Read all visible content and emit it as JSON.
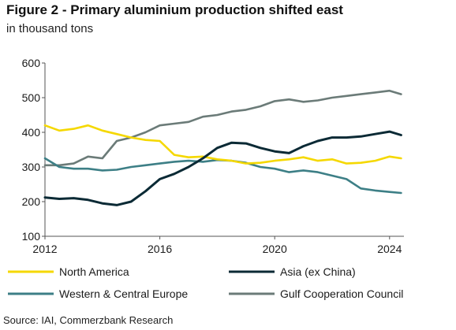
{
  "header": {
    "title": "Figure 2 - Primary aluminium production shifted east",
    "subtitle": "in thousand tons"
  },
  "footer": {
    "source": "Source: IAI, Commerzbank Research"
  },
  "colors": {
    "north_america": "#f5d800",
    "asia_ex_china": "#0b2a35",
    "western_central_europe": "#3d7f86",
    "gulf_cooperation_council": "#6b7b78",
    "axis": "#555555"
  },
  "chart_data": {
    "type": "line",
    "title": "Figure 2 - Primary aluminium production shifted east",
    "subtitle": "in thousand tons",
    "xlabel": "",
    "ylabel": "",
    "xlim": [
      2012,
      2024.5
    ],
    "ylim": [
      100,
      600
    ],
    "yticks": [
      "100",
      "200",
      "300",
      "400",
      "500",
      "600"
    ],
    "xticks": [
      "2012",
      "2016",
      "2020",
      "2024"
    ],
    "grid": false,
    "legend_position": "bottom",
    "x": [
      2012.0,
      2012.5,
      2013.0,
      2013.5,
      2014.0,
      2014.5,
      2015.0,
      2015.5,
      2016.0,
      2016.5,
      2017.0,
      2017.5,
      2018.0,
      2018.5,
      2019.0,
      2019.5,
      2020.0,
      2020.5,
      2021.0,
      2021.5,
      2022.0,
      2022.5,
      2023.0,
      2023.5,
      2024.0,
      2024.4
    ],
    "series": [
      {
        "name": "North America",
        "color_key": "north_america",
        "values": [
          420,
          405,
          410,
          420,
          405,
          395,
          385,
          378,
          375,
          335,
          328,
          330,
          322,
          318,
          310,
          312,
          318,
          322,
          328,
          318,
          322,
          310,
          312,
          318,
          330,
          325
        ]
      },
      {
        "name": "Asia (ex China)",
        "color_key": "asia_ex_china",
        "values": [
          212,
          208,
          210,
          205,
          195,
          190,
          200,
          230,
          265,
          280,
          300,
          325,
          355,
          370,
          368,
          355,
          345,
          340,
          360,
          375,
          385,
          385,
          388,
          395,
          402,
          392
        ]
      },
      {
        "name": "Western & Central Europe",
        "color_key": "western_central_europe",
        "values": [
          325,
          300,
          295,
          295,
          290,
          292,
          300,
          305,
          310,
          315,
          318,
          315,
          320,
          318,
          312,
          300,
          295,
          285,
          290,
          285,
          275,
          265,
          238,
          232,
          228,
          225
        ]
      },
      {
        "name": "Gulf Cooperation Council",
        "color_key": "gulf_cooperation_council",
        "values": [
          305,
          305,
          310,
          330,
          325,
          375,
          385,
          400,
          420,
          425,
          430,
          445,
          450,
          460,
          465,
          475,
          490,
          495,
          488,
          492,
          500,
          505,
          510,
          515,
          520,
          510
        ]
      }
    ]
  }
}
